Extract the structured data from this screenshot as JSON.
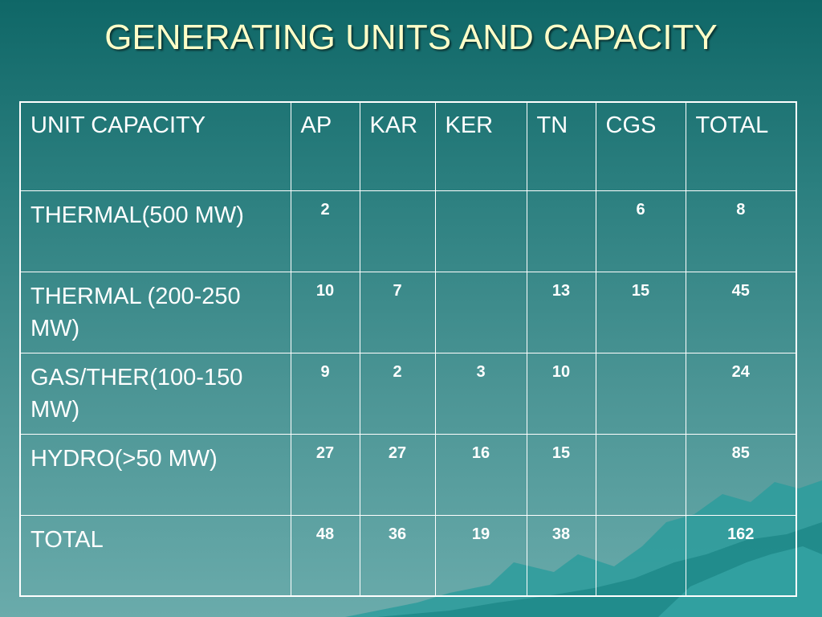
{
  "slide": {
    "title": "GENERATING UNITS AND CAPACITY"
  },
  "table": {
    "headers": [
      "UNIT CAPACITY",
      "AP",
      "KAR",
      "KER",
      "TN",
      "CGS",
      "TOTAL"
    ],
    "rows": [
      {
        "label": "THERMAL(500 MW)",
        "values": [
          "2",
          "",
          "",
          "",
          "6",
          "8"
        ]
      },
      {
        "label": "THERMAL (200-250 MW)",
        "values": [
          "10",
          "7",
          "",
          "13",
          "15",
          "45"
        ]
      },
      {
        "label": "GAS/THER(100-150 MW)",
        "values": [
          "9",
          "2",
          "3",
          "10",
          "",
          "24"
        ]
      },
      {
        "label": "HYDRO(>50 MW)",
        "values": [
          "27",
          "27",
          "16",
          "15",
          "",
          "85"
        ]
      },
      {
        "label": "TOTAL",
        "values": [
          "48",
          "36",
          "19",
          "38",
          "",
          "162"
        ]
      }
    ]
  },
  "colors": {
    "background_top": "#0f6767",
    "background_bottom": "#6aabab",
    "title": "#ffffc8",
    "text": "#ffffff",
    "grid_lines": "#ffffff"
  }
}
